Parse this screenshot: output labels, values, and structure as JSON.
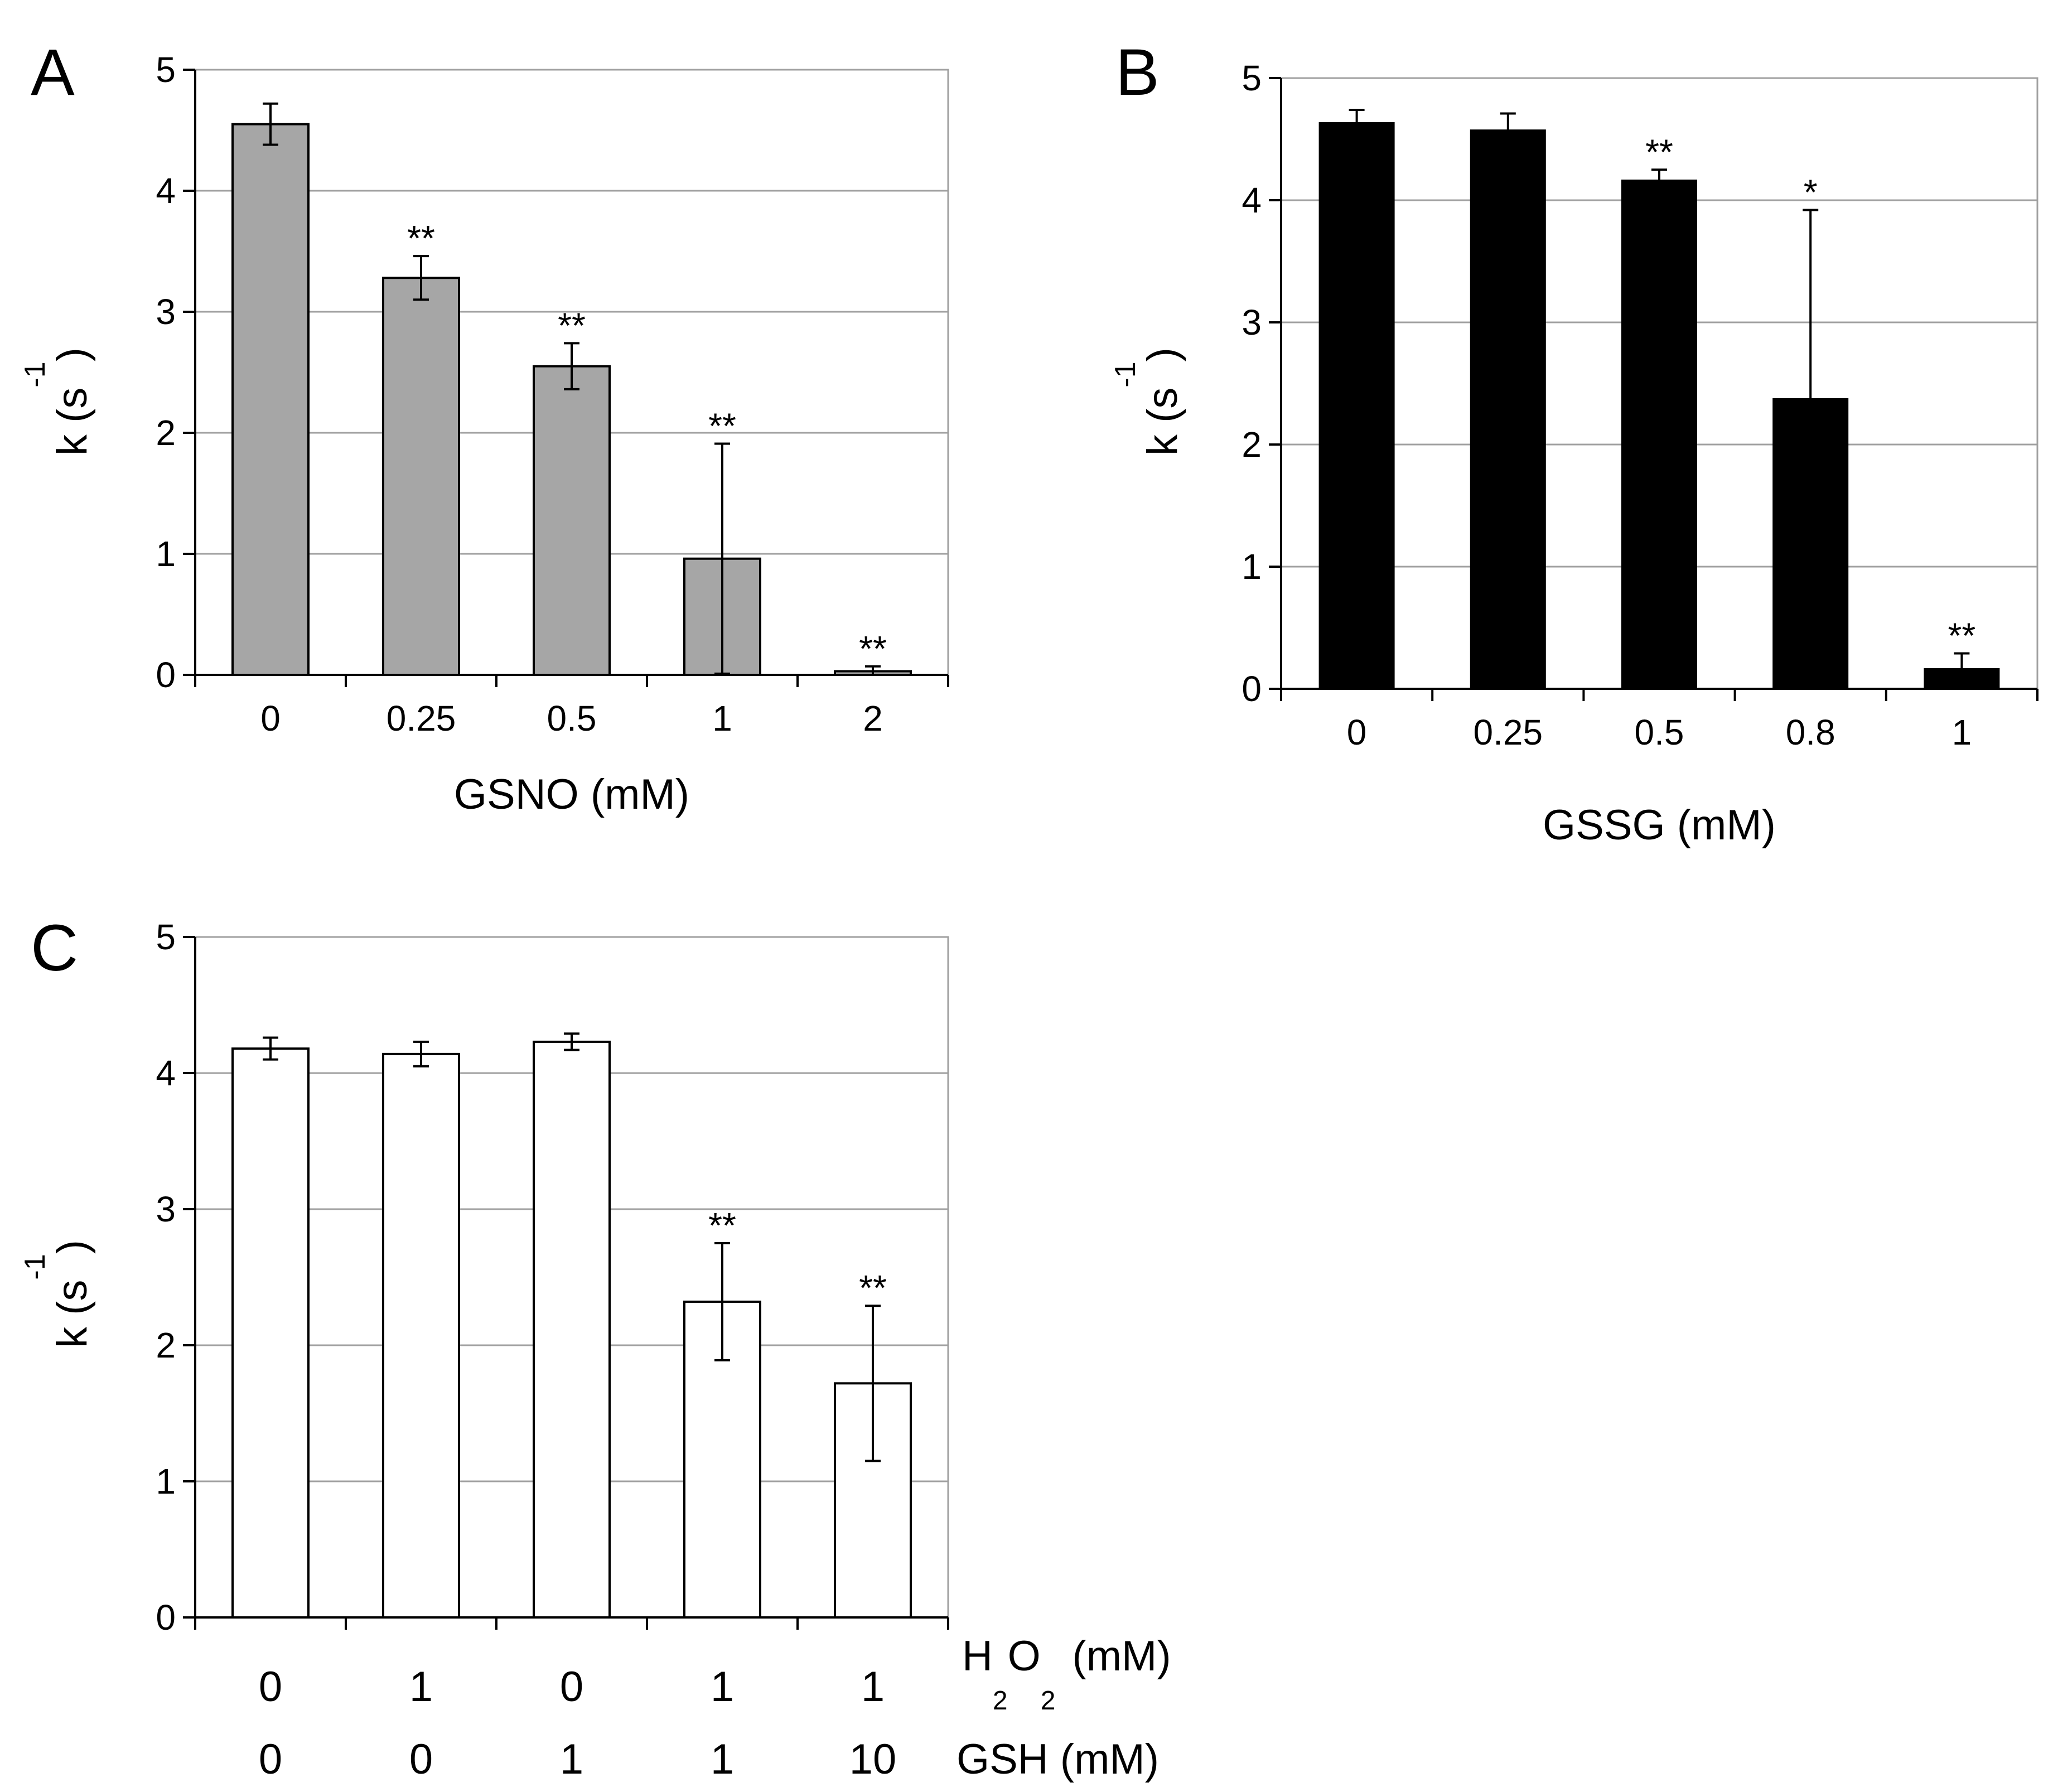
{
  "chart_data": [
    {
      "panel": "A",
      "type": "bar",
      "title": "",
      "categories": [
        "0",
        "0.25",
        "0.5",
        "1",
        "2"
      ],
      "values": [
        4.55,
        3.28,
        2.55,
        0.96,
        0.03
      ],
      "errors": [
        0.17,
        0.18,
        0.19,
        0.95,
        0.04
      ],
      "significance": [
        "",
        "**",
        "**",
        "**",
        "**"
      ],
      "xlabel": "GSNO (mM)",
      "ylabel": {
        "main": "k (s",
        "sup": "-1",
        "close": ")"
      },
      "ylim": [
        0,
        5
      ],
      "yticks": [
        "0",
        "1",
        "2",
        "3",
        "4",
        "5"
      ],
      "grid": true,
      "bar_color": "#a6a6a6"
    },
    {
      "panel": "B",
      "type": "bar",
      "title": "",
      "categories": [
        "0",
        "0.25",
        "0.5",
        "0.8",
        "1"
      ],
      "values": [
        4.63,
        4.57,
        4.16,
        2.37,
        0.16
      ],
      "errors": [
        0.11,
        0.14,
        0.09,
        1.55,
        0.13
      ],
      "significance": [
        "",
        "",
        "**",
        "*",
        "**"
      ],
      "xlabel": "GSSG (mM)",
      "ylabel": {
        "main": "k (s",
        "sup": "-1",
        "close": ")"
      },
      "ylim": [
        0,
        5
      ],
      "yticks": [
        "0",
        "1",
        "2",
        "3",
        "4",
        "5"
      ],
      "grid": true,
      "bar_color": "#000000"
    },
    {
      "panel": "C",
      "type": "bar",
      "title": "",
      "categories": [
        "0/0",
        "1/0",
        "0/1",
        "1/1",
        "1/10"
      ],
      "values": [
        4.18,
        4.14,
        4.23,
        2.32,
        1.72
      ],
      "errors": [
        0.08,
        0.09,
        0.06,
        0.43,
        0.57
      ],
      "significance": [
        "",
        "",
        "",
        "**",
        "**"
      ],
      "xrows": [
        {
          "values": [
            "0",
            "1",
            "0",
            "1",
            "1"
          ],
          "label_main": "H",
          "label_sub1": "2",
          "label_mid": "O",
          "label_sub2": "2",
          "label_unit": "(mM)"
        },
        {
          "values": [
            "0",
            "0",
            "1",
            "1",
            "10"
          ],
          "label_main": "GSH (mM)"
        }
      ],
      "ylabel": {
        "main": "k (s",
        "sup": "-1",
        "close": ")"
      },
      "ylim": [
        0,
        5
      ],
      "yticks": [
        "0",
        "1",
        "2",
        "3",
        "4",
        "5"
      ],
      "grid": true,
      "bar_color": "#ffffff"
    }
  ]
}
